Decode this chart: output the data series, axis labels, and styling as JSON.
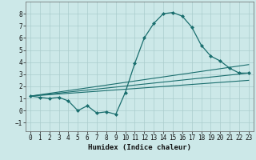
{
  "title": "",
  "xlabel": "Humidex (Indice chaleur)",
  "ylabel": "",
  "background_color": "#cce8e8",
  "grid_color": "#aacccc",
  "line_color": "#1a6e6e",
  "xlim": [
    -0.5,
    23.5
  ],
  "ylim": [
    -1.7,
    9.0
  ],
  "xticks": [
    0,
    1,
    2,
    3,
    4,
    5,
    6,
    7,
    8,
    9,
    10,
    11,
    12,
    13,
    14,
    15,
    16,
    17,
    18,
    19,
    20,
    21,
    22,
    23
  ],
  "yticks": [
    -1,
    0,
    1,
    2,
    3,
    4,
    5,
    6,
    7,
    8
  ],
  "series": [
    {
      "x": [
        0,
        1,
        2,
        3,
        4,
        5,
        6,
        7,
        8,
        9,
        10,
        11,
        12,
        13,
        14,
        15,
        16,
        17,
        18,
        19,
        20,
        21,
        22,
        23
      ],
      "y": [
        1.2,
        1.1,
        1.0,
        1.1,
        0.8,
        0.0,
        0.4,
        -0.2,
        -0.1,
        -0.3,
        1.5,
        3.9,
        6.0,
        7.2,
        8.0,
        8.1,
        7.8,
        6.9,
        5.4,
        4.5,
        4.1,
        3.5,
        3.1,
        3.1
      ],
      "marker": "D",
      "markersize": 2.0,
      "linewidth": 0.9
    },
    {
      "x": [
        0,
        23
      ],
      "y": [
        1.2,
        3.8
      ],
      "marker": null,
      "linewidth": 0.8
    },
    {
      "x": [
        0,
        23
      ],
      "y": [
        1.2,
        3.1
      ],
      "marker": null,
      "linewidth": 0.8
    },
    {
      "x": [
        0,
        23
      ],
      "y": [
        1.2,
        2.5
      ],
      "marker": null,
      "linewidth": 0.8
    }
  ]
}
